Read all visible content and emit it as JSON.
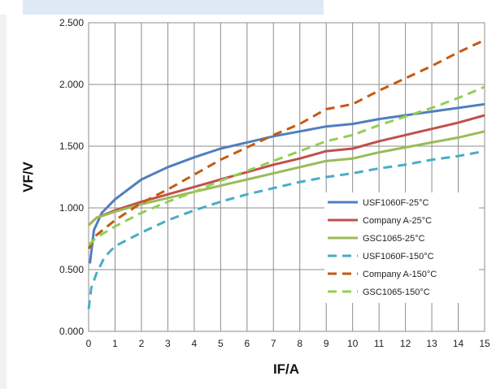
{
  "chart_data": {
    "type": "line",
    "title": "",
    "xlabel": "IF/A",
    "ylabel": "VF/V",
    "xlim": [
      0,
      15
    ],
    "ylim": [
      0,
      2.5
    ],
    "x_ticks": [
      0,
      1,
      2,
      3,
      4,
      5,
      6,
      7,
      8,
      9,
      10,
      11,
      12,
      13,
      14,
      15
    ],
    "y_ticks": [
      "0.000",
      "0.500",
      "1.000",
      "1.500",
      "2.000",
      "2.500"
    ],
    "grid": true,
    "legend_position": "right-middle",
    "series": [
      {
        "name": "USF1060F-25°C",
        "color": "#4f7fbf",
        "dash": "solid",
        "x": [
          0.05,
          0.2,
          0.5,
          1,
          2,
          3,
          4,
          5,
          6,
          7,
          8,
          9,
          10,
          11,
          12,
          13,
          14,
          15
        ],
        "y": [
          0.55,
          0.82,
          0.96,
          1.07,
          1.23,
          1.33,
          1.41,
          1.48,
          1.53,
          1.58,
          1.62,
          1.66,
          1.68,
          1.72,
          1.75,
          1.78,
          1.81,
          1.84
        ]
      },
      {
        "name": "Company A-25°C",
        "color": "#c0504d",
        "dash": "solid",
        "x": [
          0,
          0.3,
          1,
          2,
          3,
          4,
          5,
          6,
          7,
          8,
          9,
          10,
          11,
          12,
          13,
          14,
          15
        ],
        "y": [
          0.86,
          0.92,
          0.98,
          1.05,
          1.11,
          1.17,
          1.23,
          1.29,
          1.35,
          1.4,
          1.46,
          1.48,
          1.54,
          1.59,
          1.64,
          1.69,
          1.75
        ]
      },
      {
        "name": "GSC1065-25°C",
        "color": "#9bbb59",
        "dash": "solid",
        "x": [
          0,
          0.3,
          1,
          2,
          3,
          4,
          5,
          6,
          7,
          8,
          9,
          10,
          11,
          12,
          13,
          14,
          15
        ],
        "y": [
          0.86,
          0.92,
          0.97,
          1.03,
          1.08,
          1.13,
          1.18,
          1.23,
          1.28,
          1.33,
          1.38,
          1.4,
          1.45,
          1.49,
          1.53,
          1.57,
          1.62
        ]
      },
      {
        "name": "USF1060F-150°C",
        "color": "#4aacc6",
        "dash": "dashed",
        "x": [
          0,
          0.1,
          0.3,
          0.6,
          1,
          2,
          3,
          4,
          5,
          6,
          7,
          8,
          9,
          10,
          11,
          12,
          13,
          14,
          15
        ],
        "y": [
          0.18,
          0.35,
          0.47,
          0.6,
          0.69,
          0.8,
          0.9,
          0.98,
          1.05,
          1.11,
          1.16,
          1.21,
          1.25,
          1.28,
          1.32,
          1.35,
          1.39,
          1.42,
          1.46
        ]
      },
      {
        "name": "Company A-150°C",
        "color": "#c55a11",
        "dash": "dashed",
        "x": [
          0,
          0.3,
          1,
          2,
          3,
          4,
          5,
          6,
          7,
          8,
          9,
          10,
          11,
          12,
          13,
          14,
          15
        ],
        "y": [
          0.67,
          0.78,
          0.9,
          1.04,
          1.15,
          1.27,
          1.39,
          1.49,
          1.59,
          1.68,
          1.8,
          1.84,
          1.95,
          2.05,
          2.15,
          2.26,
          2.36
        ]
      },
      {
        "name": "GSC1065-150°C",
        "color": "#92d050",
        "dash": "dashed",
        "x": [
          0,
          0.3,
          1,
          2,
          3,
          4,
          5,
          6,
          7,
          8,
          9,
          10,
          11,
          12,
          13,
          14,
          15
        ],
        "y": [
          0.7,
          0.76,
          0.85,
          0.96,
          1.05,
          1.13,
          1.22,
          1.3,
          1.38,
          1.46,
          1.54,
          1.59,
          1.67,
          1.74,
          1.81,
          1.89,
          1.98
        ]
      }
    ]
  }
}
